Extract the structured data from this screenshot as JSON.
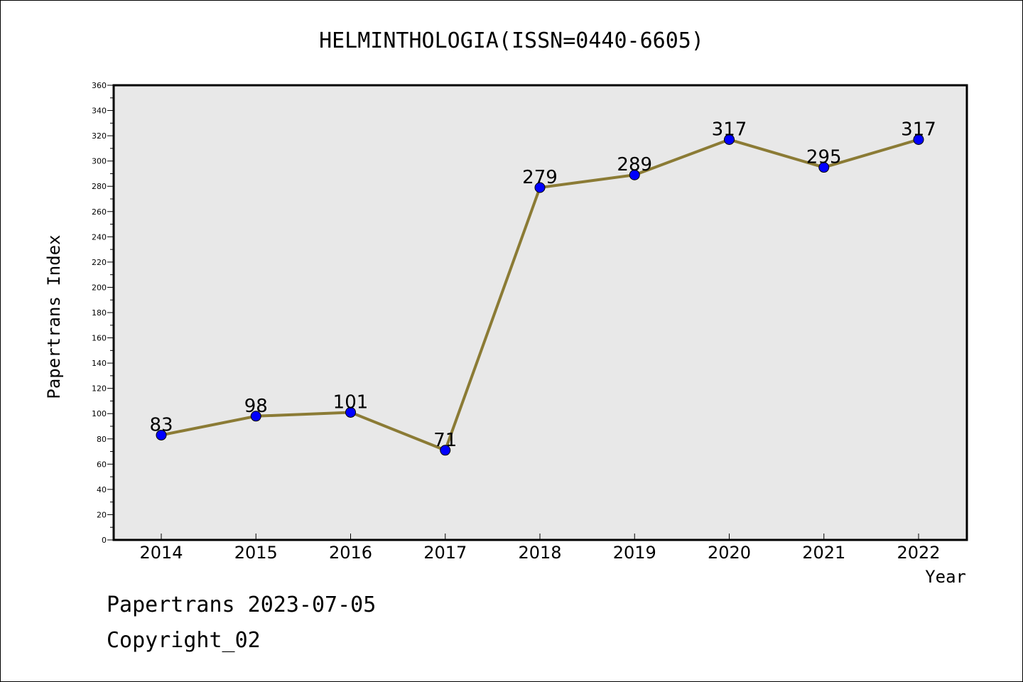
{
  "chart_data": {
    "type": "line",
    "title": "HELMINTHOLOGIA(ISSN=0440-6605)",
    "xlabel": "Year",
    "ylabel": "Papertrans Index",
    "categories": [
      "2014",
      "2015",
      "2016",
      "2017",
      "2018",
      "2019",
      "2020",
      "2021",
      "2022"
    ],
    "values": [
      83,
      98,
      101,
      71,
      279,
      289,
      317,
      295,
      317
    ],
    "data_labels": [
      "83",
      "98",
      "101",
      "71",
      "279",
      "289",
      "317",
      "295",
      "317"
    ],
    "ylim": [
      0,
      360
    ],
    "y_ticks": [
      "0",
      "20",
      "40",
      "60",
      "80",
      "100",
      "120",
      "140",
      "160",
      "180",
      "200",
      "220",
      "240",
      "260",
      "280",
      "300",
      "320",
      "340",
      "360"
    ],
    "grid": false,
    "legend": "none",
    "colors": {
      "line": "#8B7B35",
      "marker": "#0000FF",
      "plot_background": "#E8E8E8"
    }
  },
  "footer": {
    "line1": "Papertrans 2023-07-05",
    "line2": "Copyright_02"
  }
}
